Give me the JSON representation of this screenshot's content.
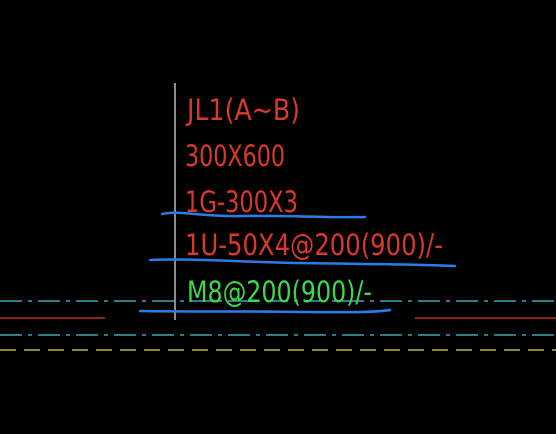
{
  "annotation": {
    "lines": [
      "JL1(A~B)",
      "300X600",
      "1G-300X3",
      "1U-50X4@200(900)/-",
      "M8@200(900)/-"
    ]
  }
}
